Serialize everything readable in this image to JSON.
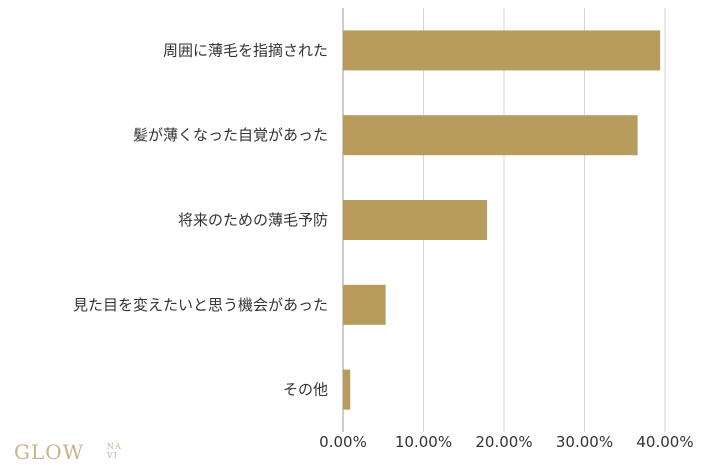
{
  "chart_data": {
    "type": "bar",
    "orientation": "horizontal",
    "categories": [
      "周囲に薄毛を指摘された",
      "髪が薄くなった自覚があった",
      "将来のための薄毛予防",
      "見た目を変えたいと思う機会があった",
      "その他"
    ],
    "values": [
      39.4,
      36.6,
      17.9,
      5.3,
      0.9
    ],
    "xlim": [
      0,
      40
    ],
    "xticks": [
      "0.00%",
      "10.00%",
      "20.00%",
      "30.00%",
      "40.00%"
    ],
    "grid": true,
    "bar_color": "#b89c5e",
    "grid_color": "#d6d6d6"
  },
  "logo": {
    "main": "GLOW",
    "sub": "NA VI"
  }
}
